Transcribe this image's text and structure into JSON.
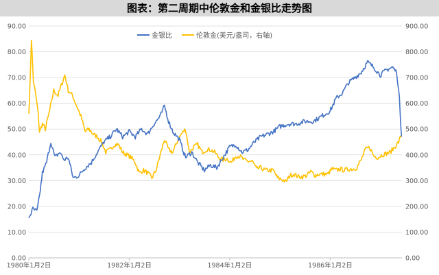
{
  "chart_data": {
    "type": "line",
    "title": "图表：第二周期中伦敦金和金银比走势图",
    "x_ticks": [
      "1980年1月2日",
      "1982年1月2日",
      "1984年1月2日",
      "1986年1月2日"
    ],
    "left_axis": {
      "ylim": [
        0,
        90
      ],
      "ticks": [
        "0.00",
        "10.00",
        "20.00",
        "30.00",
        "40.00",
        "50.00",
        "60.00",
        "70.00",
        "80.00",
        "90.00"
      ]
    },
    "right_axis": {
      "ylim": [
        0,
        900
      ],
      "ticks": [
        "0.00",
        "100.00",
        "200.00",
        "300.00",
        "400.00",
        "500.00",
        "600.00",
        "700.00",
        "800.00",
        "900.00"
      ]
    },
    "grid": true,
    "legend_position": "top-center",
    "series": [
      {
        "name": "金银比",
        "axis": "left",
        "color": "#4472c4",
        "points": [
          [
            "1980-01-02",
            15.5
          ],
          [
            "1980-02-01",
            19
          ],
          [
            "1980-03-01",
            18
          ],
          [
            "1980-03-20",
            24
          ],
          [
            "1980-04-10",
            33
          ],
          [
            "1980-05-10",
            37
          ],
          [
            "1980-06-10",
            45
          ],
          [
            "1980-07-10",
            39
          ],
          [
            "1980-08-15",
            41
          ],
          [
            "1980-09-15",
            38
          ],
          [
            "1980-10-15",
            39
          ],
          [
            "1980-11-20",
            31
          ],
          [
            "1981-01-01",
            32
          ],
          [
            "1981-02-15",
            35
          ],
          [
            "1981-04-01",
            37
          ],
          [
            "1981-05-15",
            41
          ],
          [
            "1981-07-01",
            45
          ],
          [
            "1981-08-15",
            47
          ],
          [
            "1981-10-01",
            50
          ],
          [
            "1981-11-15",
            47
          ],
          [
            "1982-01-01",
            49
          ],
          [
            "1982-02-15",
            47
          ],
          [
            "1982-04-01",
            50
          ],
          [
            "1982-05-15",
            48
          ],
          [
            "1982-07-01",
            52
          ],
          [
            "1982-08-15",
            55
          ],
          [
            "1982-09-15",
            59
          ],
          [
            "1982-10-15",
            53
          ],
          [
            "1982-11-15",
            49
          ],
          [
            "1983-01-01",
            46
          ],
          [
            "1983-02-15",
            39
          ],
          [
            "1983-04-01",
            41
          ],
          [
            "1983-05-15",
            37
          ],
          [
            "1983-07-01",
            34
          ],
          [
            "1983-08-15",
            36
          ],
          [
            "1983-10-01",
            35
          ],
          [
            "1983-11-15",
            39
          ],
          [
            "1984-01-01",
            43
          ],
          [
            "1984-02-15",
            44
          ],
          [
            "1984-04-01",
            41
          ],
          [
            "1984-05-15",
            42
          ],
          [
            "1984-07-01",
            45
          ],
          [
            "1984-08-15",
            47
          ],
          [
            "1984-10-01",
            48
          ],
          [
            "1984-11-15",
            49
          ],
          [
            "1985-01-01",
            51
          ],
          [
            "1985-03-01",
            52
          ],
          [
            "1985-05-01",
            52
          ],
          [
            "1985-07-01",
            53
          ],
          [
            "1985-09-01",
            53
          ],
          [
            "1985-11-01",
            55
          ],
          [
            "1986-01-01",
            57
          ],
          [
            "1986-02-15",
            62
          ],
          [
            "1986-04-01",
            64
          ],
          [
            "1986-05-15",
            68
          ],
          [
            "1986-07-01",
            70
          ],
          [
            "1986-08-15",
            72
          ],
          [
            "1986-10-01",
            76
          ],
          [
            "1986-11-15",
            74
          ],
          [
            "1987-01-01",
            71
          ],
          [
            "1987-02-15",
            73
          ],
          [
            "1987-04-01",
            74
          ],
          [
            "1987-05-01",
            72
          ],
          [
            "1987-05-20",
            62
          ],
          [
            "1987-06-05",
            47
          ]
        ]
      },
      {
        "name": "伦敦金(美元/盎司，右轴)",
        "axis": "right",
        "color": "#ffc000",
        "points": [
          [
            "1980-01-02",
            560
          ],
          [
            "1980-01-10",
            660
          ],
          [
            "1980-01-21",
            850
          ],
          [
            "1980-02-05",
            680
          ],
          [
            "1980-02-20",
            640
          ],
          [
            "1980-03-10",
            560
          ],
          [
            "1980-03-20",
            490
          ],
          [
            "1980-04-10",
            520
          ],
          [
            "1980-05-01",
            500
          ],
          [
            "1980-06-01",
            570
          ],
          [
            "1980-07-01",
            650
          ],
          [
            "1980-08-01",
            630
          ],
          [
            "1980-09-01",
            680
          ],
          [
            "1980-09-20",
            710
          ],
          [
            "1980-10-15",
            650
          ],
          [
            "1980-11-15",
            630
          ],
          [
            "1980-12-15",
            590
          ],
          [
            "1981-01-15",
            550
          ],
          [
            "1981-02-15",
            490
          ],
          [
            "1981-03-15",
            500
          ],
          [
            "1981-04-15",
            480
          ],
          [
            "1981-05-15",
            470
          ],
          [
            "1981-06-15",
            450
          ],
          [
            "1981-07-15",
            410
          ],
          [
            "1981-08-15",
            420
          ],
          [
            "1981-09-15",
            440
          ],
          [
            "1981-10-15",
            440
          ],
          [
            "1981-11-15",
            410
          ],
          [
            "1981-12-15",
            400
          ],
          [
            "1982-01-15",
            390
          ],
          [
            "1982-02-15",
            370
          ],
          [
            "1982-03-15",
            330
          ],
          [
            "1982-04-15",
            340
          ],
          [
            "1982-05-15",
            330
          ],
          [
            "1982-06-15",
            310
          ],
          [
            "1982-07-15",
            340
          ],
          [
            "1982-08-15",
            400
          ],
          [
            "1982-09-15",
            460
          ],
          [
            "1982-10-15",
            420
          ],
          [
            "1982-11-15",
            410
          ],
          [
            "1982-12-15",
            450
          ],
          [
            "1983-01-15",
            480
          ],
          [
            "1983-02-15",
            500
          ],
          [
            "1983-03-15",
            410
          ],
          [
            "1983-04-15",
            430
          ],
          [
            "1983-05-15",
            440
          ],
          [
            "1983-06-15",
            410
          ],
          [
            "1983-07-15",
            420
          ],
          [
            "1983-08-15",
            420
          ],
          [
            "1983-09-15",
            410
          ],
          [
            "1983-10-15",
            390
          ],
          [
            "1983-11-15",
            380
          ],
          [
            "1983-12-15",
            385
          ],
          [
            "1984-01-15",
            370
          ],
          [
            "1984-02-15",
            395
          ],
          [
            "1984-03-15",
            395
          ],
          [
            "1984-04-15",
            380
          ],
          [
            "1984-05-15",
            375
          ],
          [
            "1984-06-15",
            375
          ],
          [
            "1984-07-15",
            345
          ],
          [
            "1984-08-15",
            350
          ],
          [
            "1984-09-15",
            340
          ],
          [
            "1984-10-15",
            340
          ],
          [
            "1984-11-15",
            340
          ],
          [
            "1984-12-15",
            310
          ],
          [
            "1985-01-15",
            305
          ],
          [
            "1985-02-15",
            295
          ],
          [
            "1985-03-15",
            320
          ],
          [
            "1985-04-15",
            325
          ],
          [
            "1985-05-15",
            315
          ],
          [
            "1985-06-15",
            315
          ],
          [
            "1985-07-15",
            320
          ],
          [
            "1985-08-15",
            335
          ],
          [
            "1985-09-15",
            320
          ],
          [
            "1985-10-15",
            325
          ],
          [
            "1985-11-15",
            325
          ],
          [
            "1985-12-15",
            325
          ],
          [
            "1986-01-15",
            345
          ],
          [
            "1986-02-15",
            340
          ],
          [
            "1986-03-15",
            345
          ],
          [
            "1986-04-15",
            340
          ],
          [
            "1986-05-15",
            345
          ],
          [
            "1986-06-15",
            345
          ],
          [
            "1986-07-15",
            350
          ],
          [
            "1986-08-15",
            380
          ],
          [
            "1986-09-15",
            420
          ],
          [
            "1986-10-15",
            430
          ],
          [
            "1986-11-15",
            395
          ],
          [
            "1986-12-15",
            390
          ],
          [
            "1987-01-15",
            400
          ],
          [
            "1987-02-15",
            405
          ],
          [
            "1987-03-15",
            410
          ],
          [
            "1987-04-15",
            430
          ],
          [
            "1987-05-15",
            450
          ],
          [
            "1987-06-05",
            480
          ]
        ]
      }
    ]
  }
}
